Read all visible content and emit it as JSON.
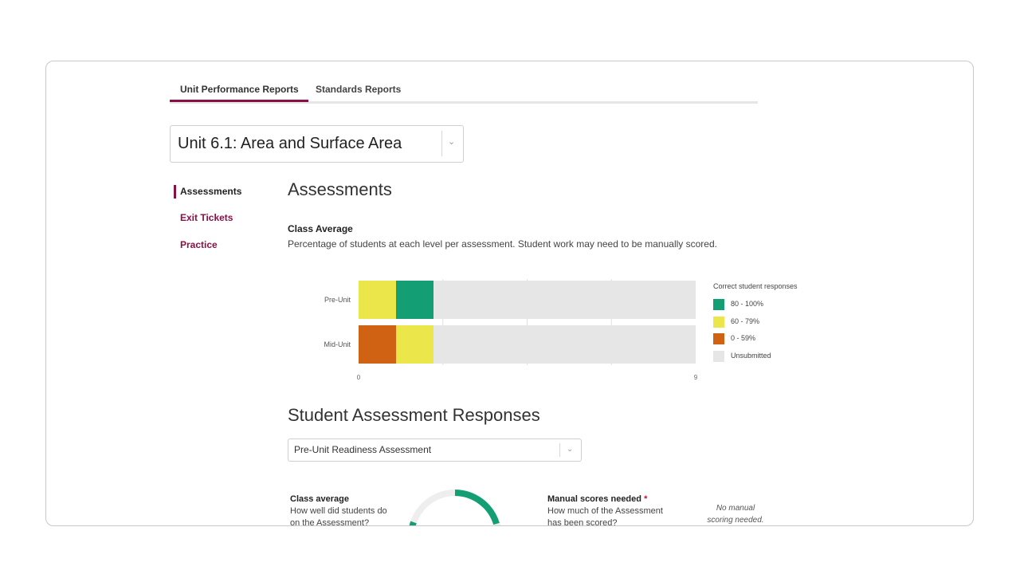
{
  "tabs": [
    {
      "label": "Unit Performance Reports",
      "active": true
    },
    {
      "label": "Standards Reports",
      "active": false
    }
  ],
  "unit_select": {
    "value": "Unit 6.1: Area and Surface Area",
    "icon": "chevron-down-icon"
  },
  "sidebar": {
    "items": [
      {
        "label": "Assessments",
        "active": true
      },
      {
        "label": "Exit Tickets",
        "active": false
      },
      {
        "label": "Practice",
        "active": false
      }
    ]
  },
  "main": {
    "title": "Assessments",
    "class_average_heading": "Class Average",
    "class_average_desc": "Percentage of students at each level per assessment. Student work may need to be manually scored."
  },
  "chart_data": {
    "type": "bar",
    "orientation": "horizontal",
    "stacked": true,
    "categories": [
      "Pre-Unit",
      "Mid-Unit"
    ],
    "series": [
      {
        "name": "0 - 59%",
        "color": "#d06313",
        "values": [
          0,
          1
        ]
      },
      {
        "name": "60 - 79%",
        "color": "#ebe64a",
        "values": [
          1,
          1
        ]
      },
      {
        "name": "80 - 100%",
        "color": "#149e73",
        "values": [
          1,
          0
        ]
      },
      {
        "name": "Unsubmitted",
        "color": "#e6e6e6",
        "values": [
          7,
          7
        ]
      }
    ],
    "xlim": [
      0,
      9
    ],
    "xticks": [
      "0",
      "9"
    ],
    "legend_title": "Correct student responses",
    "legend_order": [
      "80 - 100%",
      "60 - 79%",
      "0 - 59%",
      "Unsubmitted"
    ],
    "legend_position": "right",
    "grid": true
  },
  "responses": {
    "title": "Student Assessment Responses",
    "select_value": "Pre-Unit Readiness Assessment",
    "class_avg_label": "Class average",
    "class_avg_q1": "How well did students do",
    "class_avg_q2": "on the Assessment?",
    "manual_label": "Manual scores needed",
    "manual_required_mark": "*",
    "manual_q1": "How much of the Assessment",
    "manual_q2": "has been scored?",
    "manual_note1": "No manual",
    "manual_note2": "scoring needed."
  }
}
